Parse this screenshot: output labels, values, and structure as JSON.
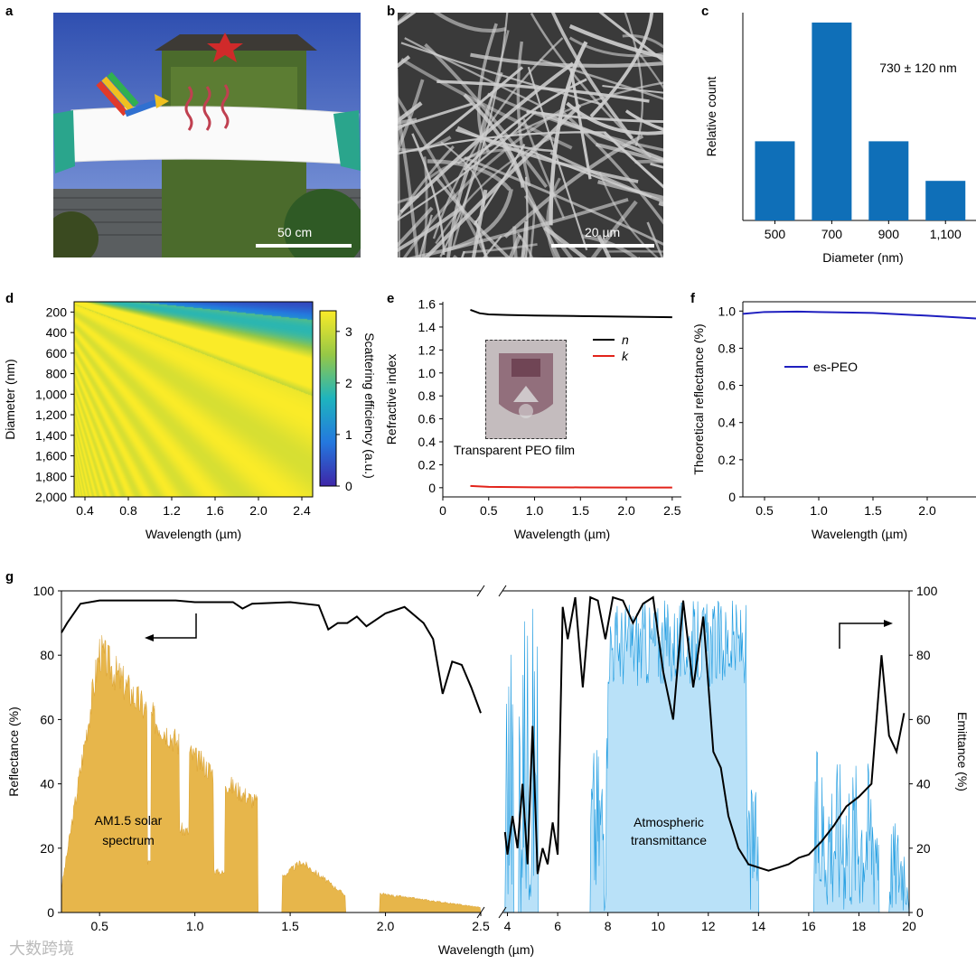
{
  "panels": {
    "a": {
      "label": "a",
      "scalebar": "50 cm"
    },
    "b": {
      "label": "b",
      "scalebar": "20 µm"
    },
    "c": {
      "label": "c"
    },
    "d": {
      "label": "d"
    },
    "e": {
      "label": "e",
      "inset_caption": "Transparent PEO film"
    },
    "f": {
      "label": "f"
    },
    "g": {
      "label": "g"
    }
  },
  "watermark": "大数跨境",
  "chart_data": [
    {
      "panel": "c",
      "type": "bar",
      "categories": [
        "500",
        "700",
        "900",
        "1,100"
      ],
      "values": [
        0.32,
        0.8,
        0.32,
        0.16
      ],
      "xlabel": "Diameter (nm)",
      "ylabel": "Relative count",
      "annotation": "730 ± 120 nm",
      "color": "#0f6fb8"
    },
    {
      "panel": "d",
      "type": "heatmap",
      "xlabel": "Wavelength (µm)",
      "ylabel": "Diameter (nm)",
      "xticks": [
        "0.4",
        "0.8",
        "1.2",
        "1.6",
        "2.0",
        "2.4"
      ],
      "xlim": [
        0.3,
        2.5
      ],
      "yticks": [
        "200",
        "400",
        "600",
        "800",
        "1,000",
        "1,200",
        "1,400",
        "1,600",
        "1,800",
        "2,000"
      ],
      "ylim": [
        100,
        2000
      ],
      "colorbar": {
        "label": "Scattering efficiency (a.u.)",
        "ticks": [
          "0",
          "1",
          "2",
          "3"
        ],
        "range": [
          0,
          3.4
        ]
      }
    },
    {
      "panel": "e",
      "type": "line",
      "xlabel": "Wavelength (µm)",
      "ylabel": "Refractive index",
      "xticks": [
        "0",
        "0.5",
        "1.0",
        "1.5",
        "2.0",
        "2.5"
      ],
      "xlim": [
        0,
        2.6
      ],
      "yticks": [
        "0",
        "0.2",
        "0.4",
        "0.6",
        "0.8",
        "1.0",
        "1.2",
        "1.4",
        "1.6"
      ],
      "ylim": [
        -0.08,
        1.62
      ],
      "legend": "top-right",
      "series": [
        {
          "name": "n",
          "color": "#000000",
          "x": [
            0.3,
            0.4,
            0.5,
            0.7,
            1.0,
            1.5,
            2.0,
            2.5
          ],
          "y": [
            1.55,
            1.52,
            1.51,
            1.505,
            1.5,
            1.495,
            1.49,
            1.485
          ]
        },
        {
          "name": "k",
          "color": "#e2231a",
          "x": [
            0.3,
            0.5,
            1.0,
            1.5,
            2.0,
            2.5
          ],
          "y": [
            0.015,
            0.008,
            0.004,
            0.003,
            0.002,
            0.002
          ]
        }
      ]
    },
    {
      "panel": "f",
      "type": "line",
      "xlabel": "Wavelength (µm)",
      "ylabel": "Theoretical reflectance (%)",
      "xticks": [
        "0.5",
        "1.0",
        "1.5",
        "2.0"
      ],
      "xlim": [
        0.3,
        2.45
      ],
      "yticks": [
        "0",
        "0.2",
        "0.4",
        "0.6",
        "0.8",
        "1.0"
      ],
      "ylim": [
        0,
        1.05
      ],
      "series": [
        {
          "name": "es-PEO",
          "color": "#1f1fbf",
          "x": [
            0.3,
            0.5,
            0.8,
            1.0,
            1.5,
            2.0,
            2.45
          ],
          "y": [
            0.985,
            0.995,
            0.997,
            0.995,
            0.99,
            0.975,
            0.96
          ]
        }
      ]
    },
    {
      "panel": "g",
      "type": "line",
      "xlabel": "Wavelength (µm)",
      "ylabel_left": "Reflectance (%)",
      "ylabel_right": "Emittance (%)",
      "xticks_left": [
        "0.5",
        "1.0",
        "1.5",
        "2.0",
        "2.5"
      ],
      "xlim_left": [
        0.3,
        2.5
      ],
      "xticks_right": [
        "4",
        "6",
        "8",
        "10",
        "12",
        "14",
        "16",
        "18",
        "20"
      ],
      "xlim_right": [
        3.8,
        20
      ],
      "yticks": [
        "0",
        "20",
        "40",
        "60",
        "80",
        "100"
      ],
      "ylim": [
        0,
        100
      ],
      "annotations": [
        "AM1.5 solar spectrum",
        "Atmospheric transmittance"
      ],
      "series": [
        {
          "name": "Reflectance",
          "color": "#000000",
          "x": [
            0.3,
            0.33,
            0.4,
            0.5,
            0.7,
            0.9,
            1.0,
            1.2,
            1.25,
            1.3,
            1.5,
            1.65,
            1.7,
            1.75,
            1.8,
            1.85,
            1.9,
            2.0,
            2.1,
            2.2,
            2.25,
            2.3,
            2.35,
            2.4,
            2.45,
            2.5
          ],
          "y": [
            87,
            90,
            96,
            97,
            97,
            97,
            96.5,
            96.5,
            94.5,
            96,
            96.5,
            95.5,
            88,
            90,
            90,
            92,
            89,
            93,
            95,
            90,
            85,
            68,
            78,
            77,
            70,
            62
          ]
        },
        {
          "name": "Emittance",
          "color": "#000000",
          "x": [
            3.9,
            4.0,
            4.2,
            4.4,
            4.6,
            4.8,
            5.0,
            5.2,
            5.4,
            5.6,
            5.8,
            6.0,
            6.2,
            6.4,
            6.7,
            7.0,
            7.3,
            7.6,
            7.9,
            8.2,
            8.6,
            9.0,
            9.4,
            9.8,
            10.2,
            10.6,
            11.0,
            11.4,
            11.8,
            12.2,
            12.5,
            12.8,
            13.2,
            13.6,
            14.0,
            14.4,
            14.8,
            15.2,
            15.6,
            16.0,
            16.5,
            17.0,
            17.5,
            18.0,
            18.5,
            18.9,
            19.2,
            19.5,
            19.8
          ],
          "y": [
            25,
            18,
            30,
            20,
            40,
            15,
            58,
            12,
            20,
            15,
            28,
            18,
            95,
            85,
            98,
            70,
            98,
            97,
            85,
            98,
            97,
            90,
            96,
            98,
            75,
            60,
            97,
            70,
            92,
            50,
            45,
            30,
            20,
            15,
            14,
            13,
            14,
            15,
            17,
            18,
            22,
            27,
            33,
            36,
            40,
            80,
            55,
            50,
            62
          ]
        }
      ]
    }
  ]
}
